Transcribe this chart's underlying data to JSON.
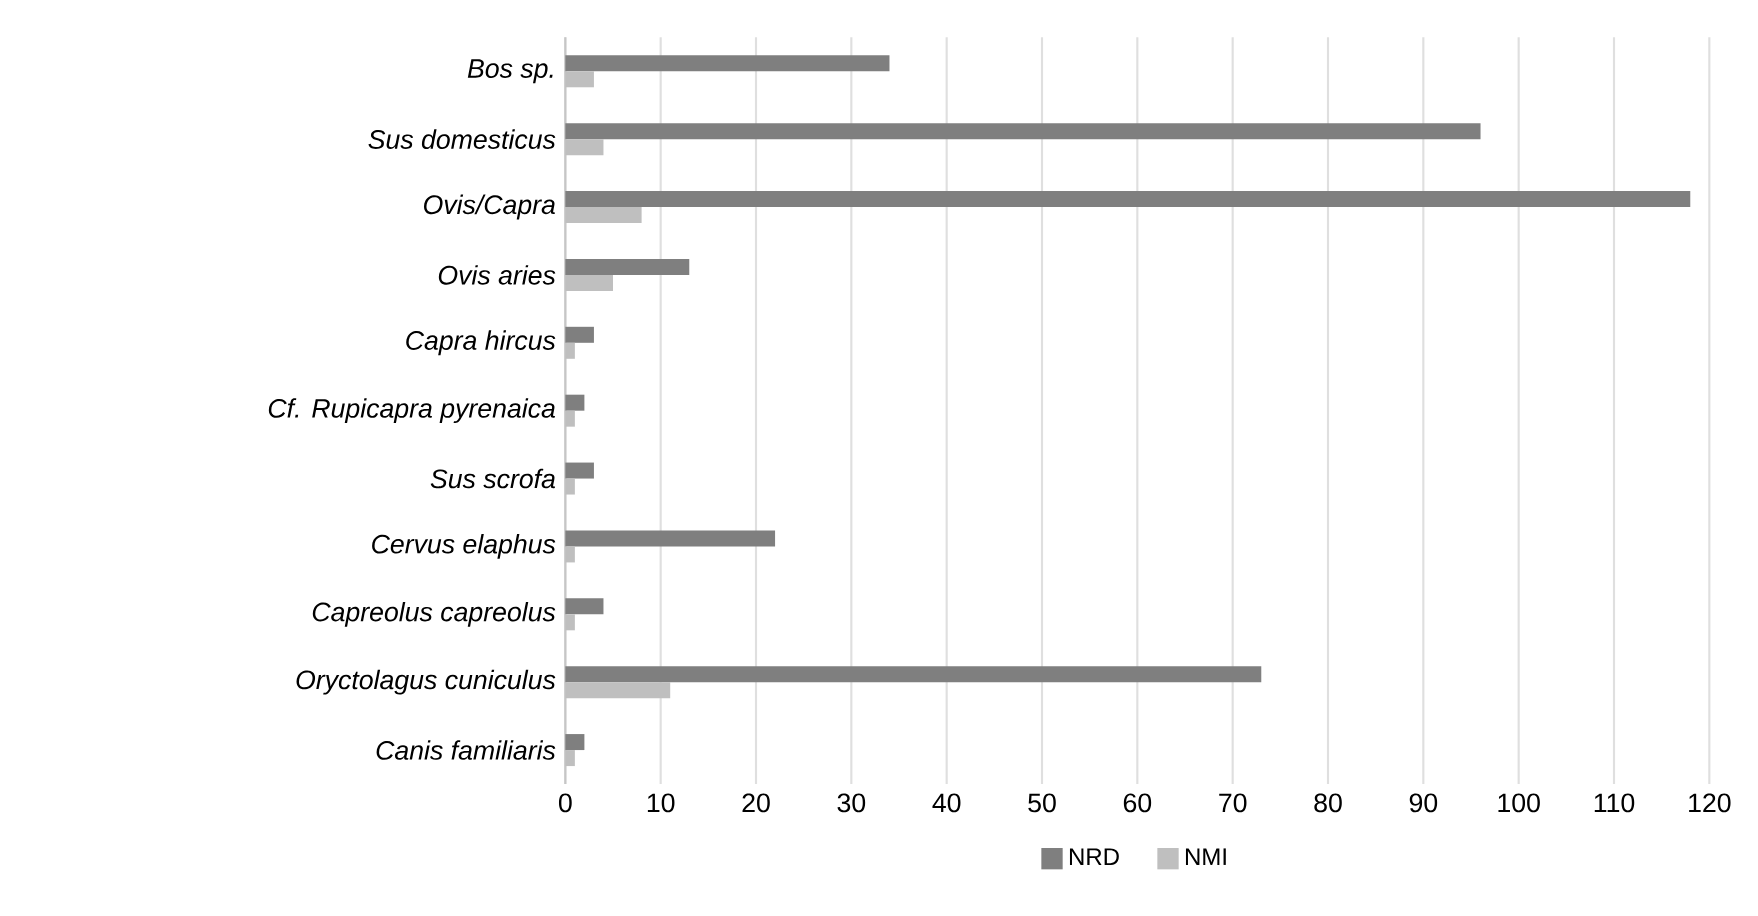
{
  "chart_data": {
    "type": "bar",
    "orientation": "horizontal",
    "categories": [
      "Bos sp.",
      "Sus domesticus",
      "Ovis/Capra",
      "Ovis aries",
      "Capra hircus",
      "Cf. Rupicapra pyrenaica",
      "Sus scrofa",
      "Cervus elaphus",
      "Capreolus capreolus",
      "Oryctolagus cuniculus",
      "Canis familiaris"
    ],
    "series": [
      {
        "name": "NRD",
        "color": "#7f7f7f",
        "values": [
          34,
          96,
          118,
          13,
          3,
          2,
          3,
          22,
          4,
          73,
          2
        ]
      },
      {
        "name": "NMI",
        "color": "#bfbfbf",
        "values": [
          3,
          4,
          8,
          5,
          1,
          1,
          1,
          1,
          1,
          11,
          1
        ]
      }
    ],
    "xlim": [
      0,
      120
    ],
    "xticks": [
      0,
      10,
      20,
      30,
      40,
      50,
      60,
      70,
      80,
      90,
      100,
      110,
      120
    ],
    "grid": "x",
    "legend": "bottom"
  }
}
